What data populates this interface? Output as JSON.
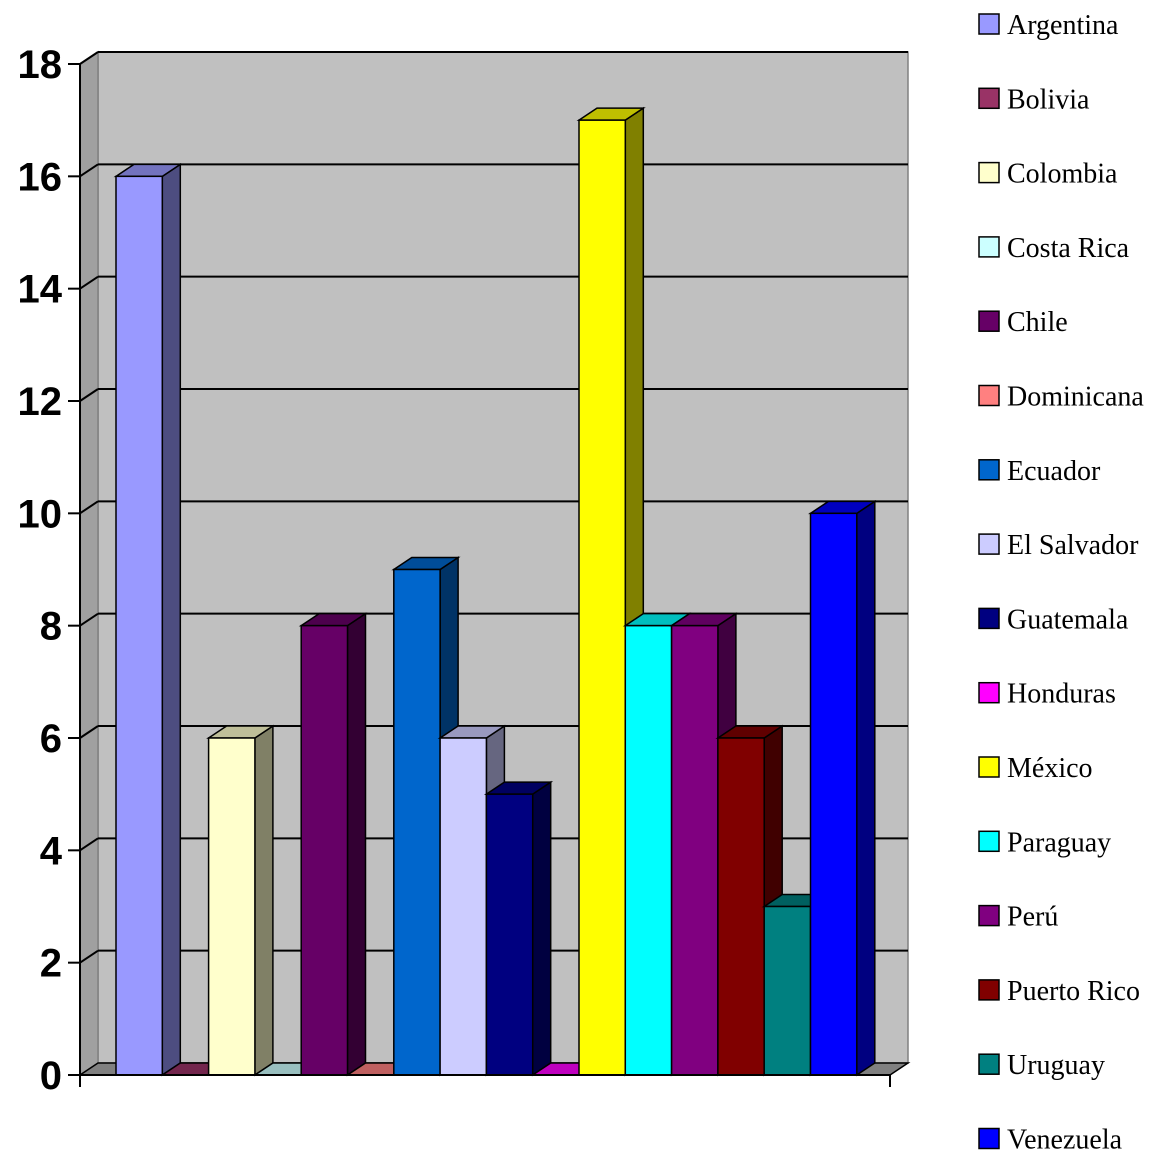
{
  "chart_data": {
    "type": "bar",
    "title": "",
    "xlabel": "",
    "ylabel": "",
    "ylim": [
      0,
      18
    ],
    "yticks": [
      0,
      2,
      4,
      6,
      8,
      10,
      12,
      14,
      16,
      18
    ],
    "grid": true,
    "legend_position": "right",
    "categories": [
      "Argentina",
      "Bolivia",
      "Colombia",
      "Costa Rica",
      "Chile",
      "Dominicana",
      "Ecuador",
      "El Salvador",
      "Guatemala",
      "Honduras",
      "México",
      "Paraguay",
      "Perú",
      "Puerto Rico",
      "Uruguay",
      "Venezuela"
    ],
    "values": [
      16,
      0,
      6,
      0,
      8,
      0,
      9,
      6,
      5,
      0,
      17,
      8,
      8,
      6,
      3,
      10
    ],
    "colors": [
      "#9999FF",
      "#993366",
      "#FFFFCC",
      "#CCFFFF",
      "#660066",
      "#FF8080",
      "#0066CC",
      "#CCCCFF",
      "#000080",
      "#FF00FF",
      "#FFFF00",
      "#00FFFF",
      "#800080",
      "#800000",
      "#008080",
      "#0000FF"
    ]
  }
}
